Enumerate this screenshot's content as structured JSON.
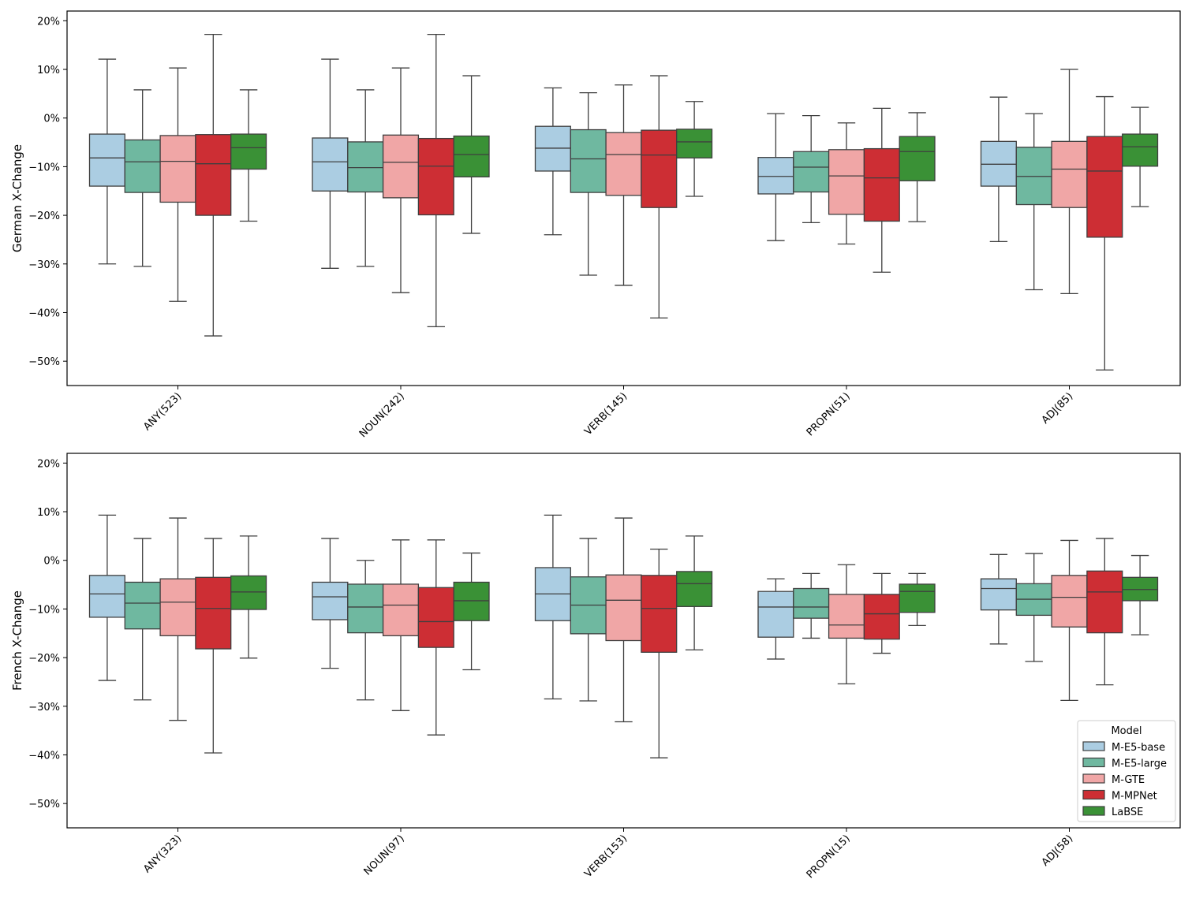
{
  "chart_data": [
    {
      "type": "box",
      "ylabel": "German X-Change",
      "ylim": [
        -55,
        22
      ],
      "yticks": [
        20,
        10,
        0,
        -10,
        -20,
        -30,
        -40,
        -50
      ],
      "ytick_labels": [
        "20%",
        "10%",
        "0%",
        "−10%",
        "−20%",
        "−30%",
        "−40%",
        "−50%"
      ],
      "categories": [
        "ANY(523)",
        "NOUN(242)",
        "VERB(145)",
        "PROPN(51)",
        "ADJ(85)"
      ],
      "series": [
        {
          "name": "M-E5-base",
          "color": "#abcde2",
          "boxes": [
            {
              "whislo": -30.0,
              "q1": -14.0,
              "med": -8.2,
              "q3": -3.3,
              "whishi": 12.1
            },
            {
              "whislo": -30.9,
              "q1": -15.0,
              "med": -9.0,
              "q3": -4.1,
              "whishi": 12.1
            },
            {
              "whislo": -24.0,
              "q1": -10.9,
              "med": -6.2,
              "q3": -1.7,
              "whishi": 6.2
            },
            {
              "whislo": -25.2,
              "q1": -15.6,
              "med": -12.0,
              "q3": -8.1,
              "whishi": 0.9
            },
            {
              "whislo": -25.4,
              "q1": -14.0,
              "med": -9.5,
              "q3": -4.8,
              "whishi": 4.3
            }
          ]
        },
        {
          "name": "M-E5-large",
          "color": "#6fb8a0",
          "boxes": [
            {
              "whislo": -30.5,
              "q1": -15.3,
              "med": -9.0,
              "q3": -4.5,
              "whishi": 5.8
            },
            {
              "whislo": -30.5,
              "q1": -15.2,
              "med": -10.2,
              "q3": -4.9,
              "whishi": 5.8
            },
            {
              "whislo": -32.3,
              "q1": -15.3,
              "med": -8.4,
              "q3": -2.4,
              "whishi": 5.2
            },
            {
              "whislo": -21.5,
              "q1": -15.2,
              "med": -10.1,
              "q3": -6.9,
              "whishi": 0.5
            },
            {
              "whislo": -35.3,
              "q1": -17.8,
              "med": -12.0,
              "q3": -6.0,
              "whishi": 0.9
            }
          ]
        },
        {
          "name": "M-GTE",
          "color": "#f0a6a6",
          "boxes": [
            {
              "whislo": -37.7,
              "q1": -17.3,
              "med": -8.9,
              "q3": -3.6,
              "whishi": 10.3
            },
            {
              "whislo": -35.9,
              "q1": -16.4,
              "med": -9.1,
              "q3": -3.5,
              "whishi": 10.3
            },
            {
              "whislo": -34.4,
              "q1": -15.9,
              "med": -7.5,
              "q3": -3.0,
              "whishi": 6.8
            },
            {
              "whislo": -25.9,
              "q1": -19.8,
              "med": -11.9,
              "q3": -6.5,
              "whishi": -1.0
            },
            {
              "whislo": -36.1,
              "q1": -18.4,
              "med": -10.5,
              "q3": -4.8,
              "whishi": 10.0
            }
          ]
        },
        {
          "name": "M-MPNet",
          "color": "#cd2e34",
          "boxes": [
            {
              "whislo": -44.8,
              "q1": -20.0,
              "med": -9.4,
              "q3": -3.4,
              "whishi": 17.2
            },
            {
              "whislo": -42.9,
              "q1": -19.9,
              "med": -9.9,
              "q3": -4.2,
              "whishi": 17.2
            },
            {
              "whislo": -41.1,
              "q1": -18.4,
              "med": -7.6,
              "q3": -2.5,
              "whishi": 8.7
            },
            {
              "whislo": -31.7,
              "q1": -21.2,
              "med": -12.3,
              "q3": -6.3,
              "whishi": 2.0
            },
            {
              "whislo": -51.8,
              "q1": -24.5,
              "med": -10.9,
              "q3": -3.8,
              "whishi": 4.4
            }
          ]
        },
        {
          "name": "LaBSE",
          "color": "#3a9136",
          "boxes": [
            {
              "whislo": -21.2,
              "q1": -10.5,
              "med": -6.1,
              "q3": -3.3,
              "whishi": 5.8
            },
            {
              "whislo": -23.7,
              "q1": -12.1,
              "med": -7.5,
              "q3": -3.7,
              "whishi": 8.7
            },
            {
              "whislo": -16.1,
              "q1": -8.2,
              "med": -4.9,
              "q3": -2.3,
              "whishi": 3.4
            },
            {
              "whislo": -21.3,
              "q1": -12.9,
              "med": -6.9,
              "q3": -3.8,
              "whishi": 1.1
            },
            {
              "whislo": -18.2,
              "q1": -9.9,
              "med": -5.9,
              "q3": -3.3,
              "whishi": 2.2
            }
          ]
        }
      ]
    },
    {
      "type": "box",
      "ylabel": "French X-Change",
      "ylim": [
        -55,
        22
      ],
      "yticks": [
        20,
        10,
        0,
        -10,
        -20,
        -30,
        -40,
        -50
      ],
      "ytick_labels": [
        "20%",
        "10%",
        "0%",
        "−10%",
        "−20%",
        "−30%",
        "−40%",
        "−50%"
      ],
      "categories": [
        "ANY(323)",
        "NOUN(97)",
        "VERB(153)",
        "PROPN(15)",
        "ADJ(58)"
      ],
      "series": [
        {
          "name": "M-E5-base",
          "color": "#abcde2",
          "boxes": [
            {
              "whislo": -24.7,
              "q1": -11.7,
              "med": -6.9,
              "q3": -3.1,
              "whishi": 9.3
            },
            {
              "whislo": -22.2,
              "q1": -12.2,
              "med": -7.5,
              "q3": -4.5,
              "whishi": 4.5
            },
            {
              "whislo": -28.5,
              "q1": -12.4,
              "med": -6.9,
              "q3": -1.5,
              "whishi": 9.3
            },
            {
              "whislo": -20.3,
              "q1": -15.8,
              "med": -9.6,
              "q3": -6.4,
              "whishi": -3.8
            },
            {
              "whislo": -17.2,
              "q1": -10.2,
              "med": -5.8,
              "q3": -3.8,
              "whishi": 1.2
            }
          ]
        },
        {
          "name": "M-E5-large",
          "color": "#6fb8a0",
          "boxes": [
            {
              "whislo": -28.7,
              "q1": -14.1,
              "med": -8.8,
              "q3": -4.5,
              "whishi": 4.5
            },
            {
              "whislo": -28.7,
              "q1": -14.9,
              "med": -9.6,
              "q3": -4.9,
              "whishi": 0.0
            },
            {
              "whislo": -28.9,
              "q1": -15.1,
              "med": -9.2,
              "q3": -3.4,
              "whishi": 4.5
            },
            {
              "whislo": -16.0,
              "q1": -11.9,
              "med": -9.6,
              "q3": -5.8,
              "whishi": -2.7
            },
            {
              "whislo": -20.8,
              "q1": -11.3,
              "med": -8.0,
              "q3": -4.8,
              "whishi": 1.4
            }
          ]
        },
        {
          "name": "M-GTE",
          "color": "#f0a6a6",
          "boxes": [
            {
              "whislo": -32.9,
              "q1": -15.5,
              "med": -8.6,
              "q3": -3.8,
              "whishi": 8.7
            },
            {
              "whislo": -30.9,
              "q1": -15.5,
              "med": -9.2,
              "q3": -4.9,
              "whishi": 4.2
            },
            {
              "whislo": -33.2,
              "q1": -16.5,
              "med": -8.2,
              "q3": -3.0,
              "whishi": 8.7
            },
            {
              "whislo": -25.4,
              "q1": -16.0,
              "med": -13.3,
              "q3": -7.0,
              "whishi": -0.9
            },
            {
              "whislo": -28.8,
              "q1": -13.7,
              "med": -7.6,
              "q3": -3.1,
              "whishi": 4.1
            }
          ]
        },
        {
          "name": "M-MPNet",
          "color": "#cd2e34",
          "boxes": [
            {
              "whislo": -39.6,
              "q1": -18.2,
              "med": -9.9,
              "q3": -3.5,
              "whishi": 4.5
            },
            {
              "whislo": -35.9,
              "q1": -17.9,
              "med": -12.6,
              "q3": -5.6,
              "whishi": 4.2
            },
            {
              "whislo": -40.6,
              "q1": -18.9,
              "med": -9.9,
              "q3": -3.1,
              "whishi": 2.3
            },
            {
              "whislo": -19.1,
              "q1": -16.2,
              "med": -11.0,
              "q3": -7.0,
              "whishi": -2.7
            },
            {
              "whislo": -25.6,
              "q1": -14.9,
              "med": -6.5,
              "q3": -2.2,
              "whishi": 4.5
            }
          ]
        },
        {
          "name": "LaBSE",
          "color": "#3a9136",
          "boxes": [
            {
              "whislo": -20.1,
              "q1": -10.1,
              "med": -6.5,
              "q3": -3.2,
              "whishi": 5.0
            },
            {
              "whislo": -22.5,
              "q1": -12.4,
              "med": -8.3,
              "q3": -4.5,
              "whishi": 1.5
            },
            {
              "whislo": -18.4,
              "q1": -9.5,
              "med": -4.8,
              "q3": -2.3,
              "whishi": 5.0
            },
            {
              "whislo": -13.4,
              "q1": -10.7,
              "med": -6.4,
              "q3": -4.9,
              "whishi": -2.7
            },
            {
              "whislo": -15.3,
              "q1": -8.3,
              "med": -6.0,
              "q3": -3.5,
              "whishi": 1.0
            }
          ]
        }
      ]
    }
  ],
  "legend": {
    "title": "Model",
    "items": [
      "M-E5-base",
      "M-E5-large",
      "M-GTE",
      "M-MPNet",
      "LaBSE"
    ]
  }
}
